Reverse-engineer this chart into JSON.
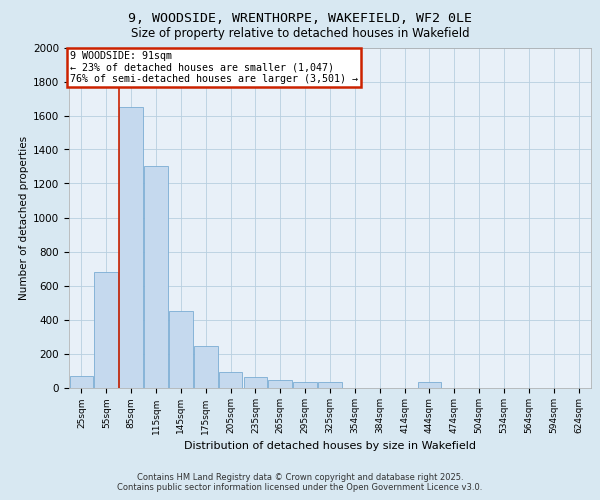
{
  "title_line1": "9, WOODSIDE, WRENTHORPE, WAKEFIELD, WF2 0LE",
  "title_line2": "Size of property relative to detached houses in Wakefield",
  "xlabel": "Distribution of detached houses by size in Wakefield",
  "ylabel": "Number of detached properties",
  "categories": [
    "25sqm",
    "55sqm",
    "85sqm",
    "115sqm",
    "145sqm",
    "175sqm",
    "205sqm",
    "235sqm",
    "265sqm",
    "295sqm",
    "325sqm",
    "354sqm",
    "384sqm",
    "414sqm",
    "444sqm",
    "474sqm",
    "504sqm",
    "534sqm",
    "564sqm",
    "594sqm",
    "624sqm"
  ],
  "values": [
    70,
    680,
    1650,
    1300,
    450,
    245,
    90,
    60,
    45,
    35,
    30,
    0,
    0,
    0,
    30,
    0,
    0,
    0,
    0,
    0,
    0
  ],
  "bar_color": "#c5d9ee",
  "bar_edge_color": "#7aadd4",
  "annotation_text": "9 WOODSIDE: 91sqm\n← 23% of detached houses are smaller (1,047)\n76% of semi-detached houses are larger (3,501) →",
  "annotation_box_color": "#ffffff",
  "annotation_box_edge_color": "#cc2200",
  "vline_color": "#cc2200",
  "vline_x": 1.5,
  "grid_color": "#b8cfe0",
  "background_color": "#d8e8f2",
  "plot_bg_color": "#e8f0f8",
  "footer_text": "Contains HM Land Registry data © Crown copyright and database right 2025.\nContains public sector information licensed under the Open Government Licence v3.0.",
  "ylim": [
    0,
    2000
  ],
  "yticks": [
    0,
    200,
    400,
    600,
    800,
    1000,
    1200,
    1400,
    1600,
    1800,
    2000
  ]
}
